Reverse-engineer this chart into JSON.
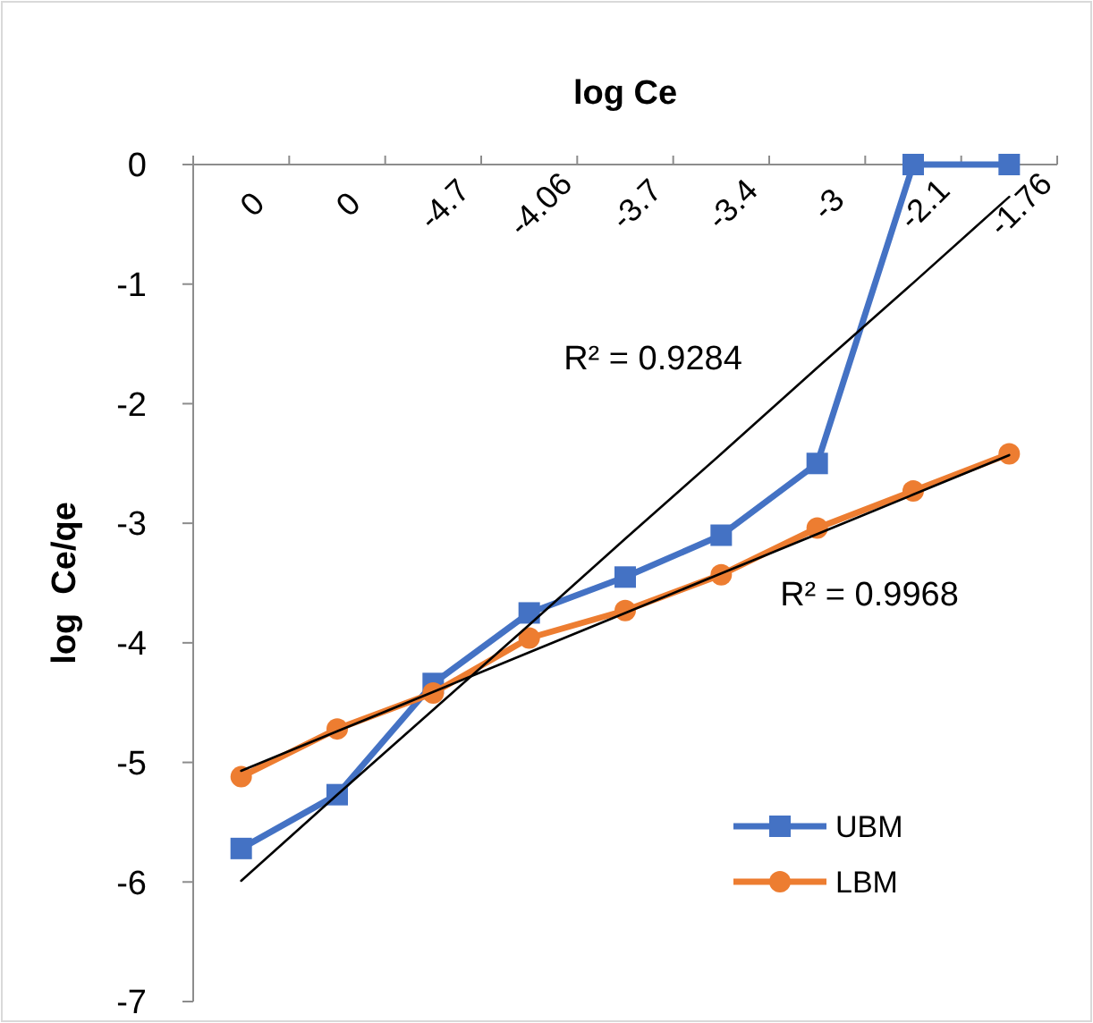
{
  "chart_data": {
    "type": "line",
    "xlabel": "log Ce",
    "ylabel": "log  Ce/qe",
    "categories": [
      "0",
      "0",
      "-4.7",
      "-4.06",
      "-3.7",
      "-3.4",
      "-3",
      "-2.1",
      "-1.76"
    ],
    "series": [
      {
        "name": "UBM",
        "color": "#4472c4",
        "marker": "square",
        "values": [
          -5.72,
          -5.27,
          -4.34,
          -3.75,
          -3.45,
          -3.1,
          -2.5,
          0,
          0
        ]
      },
      {
        "name": "LBM",
        "color": "#ed7d31",
        "marker": "circle",
        "values": [
          -5.12,
          -4.72,
          -4.42,
          -3.96,
          -3.73,
          -3.43,
          -3.04,
          -2.73,
          -2.42
        ]
      },
      {
        "color": "#000000",
        "marker": "none",
        "values": [
          -5.99,
          -5.27,
          -4.56,
          -3.85,
          -3.13,
          -2.42,
          -1.7,
          -0.99,
          -0.27
        ]
      },
      {
        "color": "#000000",
        "marker": "none",
        "values": [
          -5.07,
          -4.74,
          -4.41,
          -4.08,
          -3.75,
          -3.42,
          -3.09,
          -2.76,
          -2.43
        ]
      }
    ],
    "ylim": [
      -7,
      0
    ],
    "yticks": [
      0,
      -1,
      -2,
      -3,
      -4,
      -5,
      -6,
      -7
    ],
    "annotations": [
      "R² = 0.9284",
      "R² = 0.9968"
    ],
    "legend": "bottom right",
    "grid": false,
    "line_style": "solid"
  }
}
